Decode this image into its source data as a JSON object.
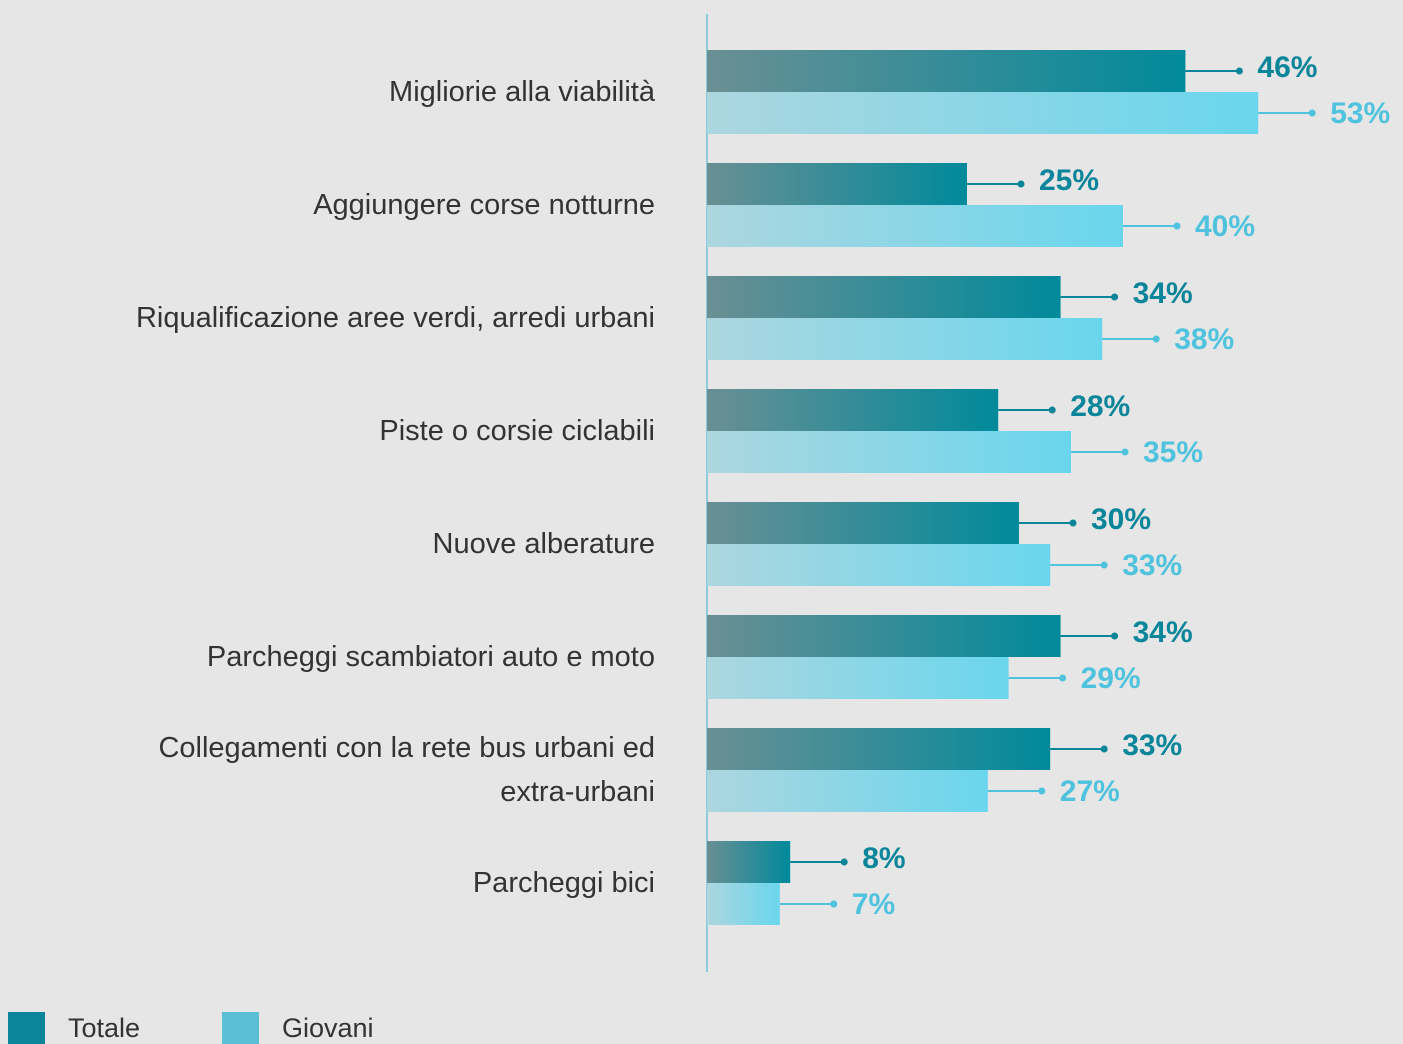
{
  "chart_data": {
    "type": "bar",
    "orientation": "horizontal",
    "categories": [
      "Migliorie alla viabilità",
      "Aggiungere corse notturne",
      "Riqualificazione aree verdi, arredi urbani",
      "Piste o corsie ciclabili",
      "Nuove alberature",
      "Parcheggi scambiatori auto e moto",
      "Collegamenti con la rete bus urbani ed\nextra-urbani",
      "Parcheggi bici"
    ],
    "series": [
      {
        "name": "Totale",
        "color": "#0a8599",
        "values": [
          46,
          25,
          34,
          28,
          30,
          34,
          33,
          8
        ],
        "value_labels": [
          "46%",
          "25%",
          "34%",
          "28%",
          "30%",
          "34%",
          "33%",
          "8%"
        ]
      },
      {
        "name": "Giovani",
        "color": "#5bc0d6",
        "values": [
          53,
          40,
          38,
          35,
          33,
          29,
          27,
          7
        ],
        "value_labels": [
          "53%",
          "40%",
          "38%",
          "35%",
          "33%",
          "29%",
          "27%",
          "7%"
        ]
      }
    ],
    "xlim": [
      0,
      60
    ],
    "legend": "bottom-left"
  }
}
